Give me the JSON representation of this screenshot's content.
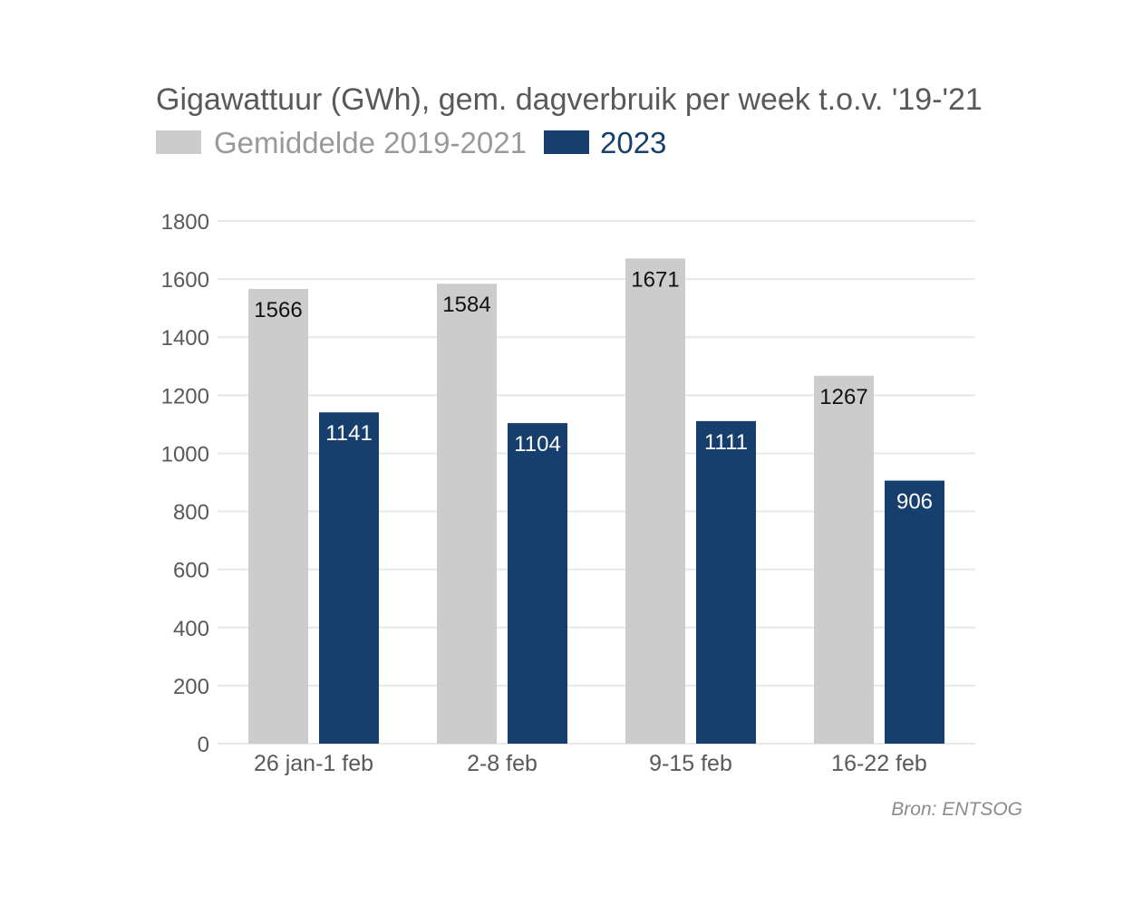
{
  "chart_data": {
    "type": "bar",
    "title": "Gigawattuur (GWh), gem. dagverbruik per week t.o.v. '19-'21",
    "xlabel": "",
    "ylabel": "",
    "ylim": [
      0,
      1800
    ],
    "yticks": [
      0,
      200,
      400,
      600,
      800,
      1000,
      1200,
      1400,
      1600,
      1800
    ],
    "grid": true,
    "legend_position": "top-left",
    "categories": [
      "26 jan-1 feb",
      "2-8 feb",
      "9-15 feb",
      "16-22 feb"
    ],
    "series": [
      {
        "name": "Gemiddelde 2019-2021",
        "color": "#cccccc",
        "label_color": "#111111",
        "legend_text_color": "#999999",
        "values": [
          1566,
          1584,
          1671,
          1267
        ]
      },
      {
        "name": "2023",
        "color": "#173f6e",
        "label_color": "#ffffff",
        "legend_text_color": "#173f6e",
        "values": [
          1141,
          1104,
          1111,
          906
        ]
      }
    ],
    "source": "Bron: ENTSOG"
  }
}
